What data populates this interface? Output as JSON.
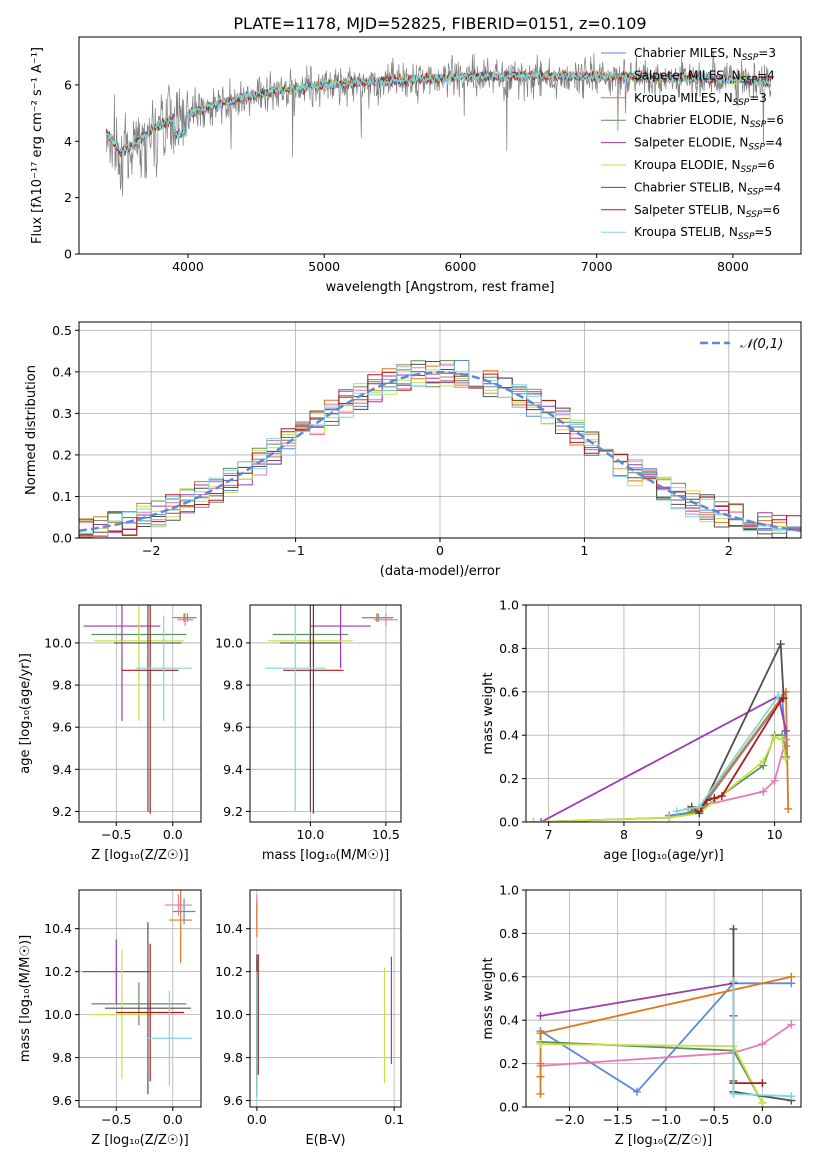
{
  "figure": {
    "title": "PLATE=1178, MJD=52825, FIBERID=0151, z=0.109"
  },
  "colors": {
    "Chabrier MILES": "#5b8ad6",
    "Salpeter MILES": "#e67bb8",
    "Kroupa MILES": "#e0771f",
    "Chabrier ELODIE": "#5f8f5a",
    "Salpeter ELODIE": "#9a3cb0",
    "Kroupa ELODIE": "#c9df4a",
    "Chabrier STELIB": "#505050",
    "Salpeter STELIB": "#b01818",
    "Kroupa STELIB": "#7fd9dc",
    "data": "#808080"
  },
  "chart_data": [
    {
      "id": "spectrum",
      "type": "line",
      "xlabel": "wavelength [Angstrom, rest frame]",
      "ylabel": "Flux [fλ10⁻¹⁷ erg cm⁻² s⁻¹ A⁻¹]",
      "xlim": [
        3200,
        8500
      ],
      "ylim": [
        0,
        7.7
      ],
      "xticks": [
        4000,
        5000,
        6000,
        7000,
        8000
      ],
      "yticks": [
        0,
        2,
        4,
        6
      ],
      "grid": false,
      "legend_position": "top-right",
      "legend": [
        {
          "name": "Chabrier MILES",
          "nssp": "3"
        },
        {
          "name": "Salpeter MILES",
          "nssp": "4"
        },
        {
          "name": "Kroupa MILES",
          "nssp": "3"
        },
        {
          "name": "Chabrier ELODIE",
          "nssp": "6"
        },
        {
          "name": "Salpeter ELODIE",
          "nssp": "4"
        },
        {
          "name": "Kroupa ELODIE",
          "nssp": "6"
        },
        {
          "name": "Chabrier STELIB",
          "nssp": "4"
        },
        {
          "name": "Salpeter STELIB",
          "nssp": "6"
        },
        {
          "name": "Kroupa STELIB",
          "nssp": "5"
        }
      ],
      "continuum": [
        [
          3400,
          4.3
        ],
        [
          3500,
          3.6
        ],
        [
          3600,
          3.9
        ],
        [
          3700,
          4.3
        ],
        [
          3800,
          4.6
        ],
        [
          3900,
          4.8
        ],
        [
          4000,
          4.95
        ],
        [
          4200,
          5.3
        ],
        [
          4400,
          5.55
        ],
        [
          4600,
          5.75
        ],
        [
          4800,
          5.9
        ],
        [
          5000,
          5.98
        ],
        [
          5200,
          6.05
        ],
        [
          5500,
          6.15
        ],
        [
          6000,
          6.28
        ],
        [
          6500,
          6.32
        ],
        [
          7000,
          6.3
        ],
        [
          7500,
          6.25
        ],
        [
          8000,
          6.2
        ],
        [
          8300,
          6.1
        ]
      ]
    },
    {
      "id": "residuals",
      "type": "step",
      "xlabel": "(data-model)/error",
      "ylabel": "Normed distribution",
      "xlim": [
        -2.5,
        2.5
      ],
      "ylim": [
        0,
        0.52
      ],
      "xticks": [
        -2,
        -1,
        0,
        1,
        2
      ],
      "yticks": [
        0.0,
        0.1,
        0.2,
        0.3,
        0.4,
        0.5
      ],
      "grid": true,
      "legend_position": "top-right",
      "reference_label": "𝒩(0,1)"
    },
    {
      "id": "age_vs_Z",
      "type": "errorbar",
      "xlabel": "Z [log₁₀(Z/Z☉)]",
      "ylabel": "age  [log₁₀(age/yr)]",
      "xlim": [
        -0.83,
        0.25
      ],
      "ylim": [
        9.15,
        10.18
      ],
      "xticks": [
        -0.5,
        0.0
      ],
      "yticks": [
        9.2,
        9.4,
        9.6,
        9.8,
        10.0
      ],
      "grid": true,
      "points": [
        {
          "model": "Chabrier MILES",
          "x": 0.13,
          "xerr": 0.08,
          "y": 10.12,
          "yerr": 0.02
        },
        {
          "model": "Salpeter MILES",
          "x": 0.11,
          "xerr": 0.07,
          "y": 10.11,
          "yerr": 0.03
        },
        {
          "model": "Kroupa MILES",
          "x": 0.1,
          "xerr": 0.1,
          "y": 10.12,
          "yerr": 0.02
        },
        {
          "model": "Chabrier ELODIE",
          "x": -0.3,
          "xerr": 0.42,
          "y": 10.04,
          "yerr": 0.05
        },
        {
          "model": "Salpeter ELODIE",
          "x": -0.45,
          "xerr": 0.34,
          "y": 10.08,
          "yerr": 0.45
        },
        {
          "model": "Kroupa ELODIE",
          "x": -0.3,
          "xerr": 0.4,
          "y": 10.01,
          "yerr": 0.38
        },
        {
          "model": "Chabrier STELIB",
          "x": -0.22,
          "xerr": 0.3,
          "y": 10.0,
          "yerr": 0.8
        },
        {
          "model": "Salpeter STELIB",
          "x": -0.2,
          "xerr": 0.25,
          "y": 9.87,
          "yerr": 0.68
        },
        {
          "model": "Kroupa STELIB",
          "x": -0.08,
          "xerr": 0.25,
          "y": 9.88,
          "yerr": 0.25
        }
      ]
    },
    {
      "id": "age_vs_mass",
      "type": "errorbar",
      "xlabel": "mass [log₁₀(M/M☉)]",
      "ylabel": "",
      "xlim": [
        9.6,
        10.6
      ],
      "ylim": [
        9.15,
        10.18
      ],
      "xticks": [
        10.0,
        10.5
      ],
      "yticks": [
        9.2,
        9.4,
        9.6,
        9.8,
        10.0
      ],
      "grid": true,
      "points": [
        {
          "model": "Chabrier MILES",
          "x": 10.45,
          "xerr": 0.1,
          "y": 10.12,
          "yerr": 0.02
        },
        {
          "model": "Salpeter MILES",
          "x": 10.5,
          "xerr": 0.08,
          "y": 10.11,
          "yerr": 0.03
        },
        {
          "model": "Kroupa MILES",
          "x": 10.44,
          "xerr": 0.1,
          "y": 10.12,
          "yerr": 0.02
        },
        {
          "model": "Chabrier ELODIE",
          "x": 10.0,
          "xerr": 0.25,
          "y": 10.04,
          "yerr": 0.05
        },
        {
          "model": "Salpeter ELODIE",
          "x": 10.2,
          "xerr": 0.2,
          "y": 10.08,
          "yerr": 0.2
        },
        {
          "model": "Kroupa ELODIE",
          "x": 10.0,
          "xerr": 0.28,
          "y": 10.01,
          "yerr": 0.25
        },
        {
          "model": "Chabrier STELIB",
          "x": 10.0,
          "xerr": 0.2,
          "y": 10.0,
          "yerr": 0.8
        },
        {
          "model": "Salpeter STELIB",
          "x": 10.02,
          "xerr": 0.2,
          "y": 9.87,
          "yerr": 0.68
        },
        {
          "model": "Kroupa STELIB",
          "x": 9.9,
          "xerr": 0.2,
          "y": 9.88,
          "yerr": 0.68
        }
      ]
    },
    {
      "id": "weight_vs_age",
      "type": "line",
      "xlabel": "age  [log₁₀(age/yr)]",
      "ylabel": "mass weight",
      "xlim": [
        6.7,
        10.35
      ],
      "ylim": [
        0,
        1.0
      ],
      "xticks": [
        7,
        8,
        9,
        10
      ],
      "yticks": [
        0.0,
        0.2,
        0.4,
        0.6,
        0.8,
        1.0
      ],
      "grid": true,
      "series": [
        {
          "model": "Chabrier MILES",
          "x": [
            8.6,
            9.0,
            10.1,
            10.15
          ],
          "y": [
            0.03,
            0.05,
            0.57,
            0.35
          ]
        },
        {
          "model": "Salpeter MILES",
          "x": [
            8.85,
            9.85,
            10.0,
            10.15
          ],
          "y": [
            0.06,
            0.14,
            0.19,
            0.38
          ]
        },
        {
          "model": "Kroupa MILES",
          "x": [
            8.9,
            9.0,
            10.15,
            10.18
          ],
          "y": [
            0.05,
            0.06,
            0.6,
            0.06
          ]
        },
        {
          "model": "Chabrier ELODIE",
          "x": [
            6.8,
            8.6,
            9.0,
            9.85,
            10.0,
            10.1,
            10.15
          ],
          "y": [
            0.0,
            0.02,
            0.05,
            0.26,
            0.4,
            0.4,
            0.3
          ]
        },
        {
          "model": "Salpeter ELODIE",
          "x": [
            6.9,
            10.05,
            10.15
          ],
          "y": [
            0.0,
            0.58,
            0.42
          ]
        },
        {
          "model": "Kroupa ELODIE",
          "x": [
            6.8,
            8.6,
            9.0,
            9.85,
            10.0,
            10.1,
            10.15
          ],
          "y": [
            0.0,
            0.02,
            0.04,
            0.28,
            0.39,
            0.38,
            0.29
          ]
        },
        {
          "model": "Chabrier STELIB",
          "x": [
            8.9,
            9.0,
            10.08,
            10.12
          ],
          "y": [
            0.07,
            0.04,
            0.82,
            0.57
          ]
        },
        {
          "model": "Salpeter STELIB",
          "x": [
            9.0,
            9.1,
            9.2,
            9.3,
            10.1
          ],
          "y": [
            0.05,
            0.1,
            0.11,
            0.12,
            0.57
          ]
        },
        {
          "model": "Kroupa STELIB",
          "x": [
            8.7,
            9.0,
            10.05
          ],
          "y": [
            0.05,
            0.07,
            0.58
          ]
        }
      ]
    },
    {
      "id": "mass_vs_Z",
      "type": "errorbar",
      "xlabel": "Z [log₁₀(Z/Z☉)]",
      "ylabel": "mass [log₁₀(M/M☉)]",
      "xlim": [
        -0.83,
        0.25
      ],
      "ylim": [
        9.57,
        10.58
      ],
      "xticks": [
        -0.5,
        0.0
      ],
      "yticks": [
        9.6,
        9.8,
        10.0,
        10.2,
        10.4
      ],
      "grid": true,
      "points": [
        {
          "model": "Chabrier MILES",
          "x": 0.1,
          "xerr": 0.1,
          "y": 10.48,
          "yerr": 0.06
        },
        {
          "model": "Salpeter MILES",
          "x": 0.05,
          "xerr": 0.12,
          "y": 10.51,
          "yerr": 0.05
        },
        {
          "model": "Kroupa MILES",
          "x": 0.07,
          "xerr": 0.1,
          "y": 10.44,
          "yerr": 0.2
        },
        {
          "model": "Chabrier ELODIE",
          "x": -0.3,
          "xerr": 0.42,
          "y": 10.05,
          "yerr": 0.1
        },
        {
          "model": "Salpeter ELODIE",
          "x": -0.5,
          "xerr": 0.3,
          "y": 10.2,
          "yerr": 0.15
        },
        {
          "model": "Kroupa ELODIE",
          "x": -0.45,
          "xerr": 0.28,
          "y": 10.0,
          "yerr": 0.3
        },
        {
          "model": "Chabrier STELIB",
          "x": -0.22,
          "xerr": 0.38,
          "y": 10.03,
          "yerr": 0.4
        },
        {
          "model": "Salpeter STELIB",
          "x": -0.2,
          "xerr": 0.3,
          "y": 10.01,
          "yerr": 0.32
        },
        {
          "model": "Kroupa STELIB",
          "x": -0.03,
          "xerr": 0.2,
          "y": 9.89,
          "yerr": 0.22
        }
      ]
    },
    {
      "id": "mass_vs_ebv",
      "type": "errorbar",
      "xlabel": "E(B-V)",
      "ylabel": "",
      "xlim": [
        -0.005,
        0.105
      ],
      "ylim": [
        9.57,
        10.58
      ],
      "xticks": [
        0.0,
        0.1
      ],
      "yticks": [
        9.6,
        9.8,
        10.0,
        10.2,
        10.4
      ],
      "grid": true,
      "points": [
        {
          "model": "Chabrier MILES",
          "x": 0.0,
          "y": 10.48,
          "yerr": 0.06
        },
        {
          "model": "Salpeter MILES",
          "x": 0.0,
          "y": 10.48,
          "yerr": 0.08
        },
        {
          "model": "Kroupa MILES",
          "x": 0.0,
          "y": 10.44,
          "yerr": 0.08
        },
        {
          "model": "Chabrier ELODIE",
          "x": 0.0,
          "y": 9.95,
          "yerr": 0.3
        },
        {
          "model": "Salpeter ELODIE",
          "x": 0.098,
          "y": 10.02,
          "yerr": 0.25
        },
        {
          "model": "Kroupa ELODIE",
          "x": 0.093,
          "y": 9.95,
          "yerr": 0.27
        },
        {
          "model": "Chabrier STELIB",
          "x": 0.0,
          "y": 9.95,
          "yerr": 0.33
        },
        {
          "model": "Salpeter STELIB",
          "x": 0.001,
          "y": 10.0,
          "yerr": 0.28
        },
        {
          "model": "Kroupa STELIB",
          "x": 0.0,
          "y": 9.9,
          "yerr": 0.3
        }
      ]
    },
    {
      "id": "weight_vs_Z",
      "type": "line",
      "xlabel": "Z [log₁₀(Z/Z☉)]",
      "ylabel": "mass weight",
      "xlim": [
        -2.45,
        0.4
      ],
      "ylim": [
        0,
        1.0
      ],
      "xticks": [
        -2.0,
        -1.5,
        -1.0,
        -0.5,
        0.0
      ],
      "yticks": [
        0.0,
        0.2,
        0.4,
        0.6,
        0.8,
        1.0
      ],
      "grid": true,
      "series": [
        {
          "model": "Chabrier MILES",
          "x": [
            -2.3,
            -1.3,
            -0.3,
            0.3
          ],
          "y": [
            0.35,
            0.07,
            0.57,
            0.57
          ]
        },
        {
          "model": "Salpeter MILES",
          "x": [
            -2.3,
            -0.3,
            0.0,
            0.3
          ],
          "y": [
            0.19,
            0.25,
            0.29,
            0.38
          ]
        },
        {
          "model": "Kroupa MILES",
          "x": [
            -2.3,
            -2.3,
            -2.3,
            -2.3,
            0.3
          ],
          "y": [
            0.06,
            0.14,
            0.2,
            0.34,
            0.6
          ]
        },
        {
          "model": "Chabrier ELODIE",
          "x": [
            -2.3,
            -0.3,
            0.0
          ],
          "y": [
            0.3,
            0.26,
            0.02
          ]
        },
        {
          "model": "Salpeter ELODIE",
          "x": [
            -2.3,
            -0.3,
            -0.3
          ],
          "y": [
            0.42,
            0.57,
            0.42
          ]
        },
        {
          "model": "Kroupa ELODIE",
          "x": [
            -2.3,
            -0.3,
            0.0
          ],
          "y": [
            0.29,
            0.28,
            0.02
          ]
        },
        {
          "model": "Chabrier STELIB",
          "x": [
            -0.3,
            -0.3,
            -0.3,
            0.3
          ],
          "y": [
            0.82,
            0.12,
            0.07,
            0.03
          ]
        },
        {
          "model": "Salpeter STELIB",
          "x": [
            -0.3,
            -0.3,
            0.0
          ],
          "y": [
            0.57,
            0.11,
            0.11
          ]
        },
        {
          "model": "Kroupa STELIB",
          "x": [
            -0.3,
            -0.3,
            0.3
          ],
          "y": [
            0.58,
            0.06,
            0.05
          ]
        }
      ]
    }
  ]
}
